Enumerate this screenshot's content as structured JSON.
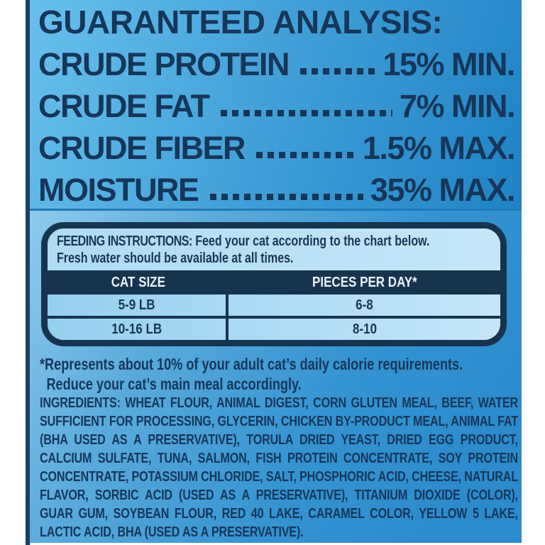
{
  "product_label": {
    "guaranteed_analysis": {
      "title": "GUARANTEED ANALYSIS:",
      "rows": [
        {
          "nutrient": "CRUDE PROTEIN",
          "value": "15% MIN."
        },
        {
          "nutrient": "CRUDE FAT",
          "value": "7% MIN."
        },
        {
          "nutrient": "CRUDE FIBER",
          "value": "1.5% MAX."
        },
        {
          "nutrient": "MOISTURE",
          "value": "35% MAX."
        }
      ]
    },
    "feeding_instructions": {
      "heading": "FEEDING INSTRUCTIONS:",
      "line1": "Feed your cat according to the chart below.",
      "line2": "Fresh water should be available at all times.",
      "table": {
        "headers": [
          "CAT SIZE",
          "PIECES PER DAY*"
        ],
        "rows": [
          {
            "cat_size": "5-9 LB",
            "pieces_per_day": "6-8"
          },
          {
            "cat_size": "10-16 LB",
            "pieces_per_day": "8-10"
          }
        ]
      }
    },
    "footnote": {
      "line1": "*Represents about 10% of your adult cat’s daily calorie requirements.",
      "line2": "Reduce your cat’s main meal accordingly."
    },
    "ingredients": "INGREDIENTS: WHEAT FLOUR, ANIMAL DIGEST, CORN GLUTEN MEAL, BEEF, WATER SUFFICIENT FOR PROCESSING, GLYCERIN, CHICKEN BY-PRODUCT MEAL, ANIMAL FAT (BHA USED AS A PRESERVATIVE), TORULA DRIED YEAST, DRIED EGG PRODUCT, CALCIUM SULFATE, TUNA, SALMON, FISH PROTEIN CONCENTRATE, SOY PROTEIN CONCENTRATE, POTASSIUM CHLORIDE, SALT, PHOSPHORIC ACID, CHEESE, NATURAL FLAVOR, SORBIC ACID (USED AS A PRESERVATIVE), TITANIUM DIOXIDE (COLOR), GUAR GUM, SOYBEAN FLOUR, RED 40 LAKE, CARAMEL COLOR, YELLOW 5 LAKE, LACTIC ACID, BHA (USED AS A PRESERVATIVE).",
    "colors": {
      "navy_text": "#16365a",
      "panel_blue_light": "#67c0ed",
      "panel_blue_dark": "#1f83c6",
      "lower_blue": "#2b8bcd",
      "table_header_bg": "#17344f",
      "table_header_text": "#e9f4fb",
      "instructions_bg": "#b7dff5",
      "page_margin": "#ffffff"
    }
  }
}
